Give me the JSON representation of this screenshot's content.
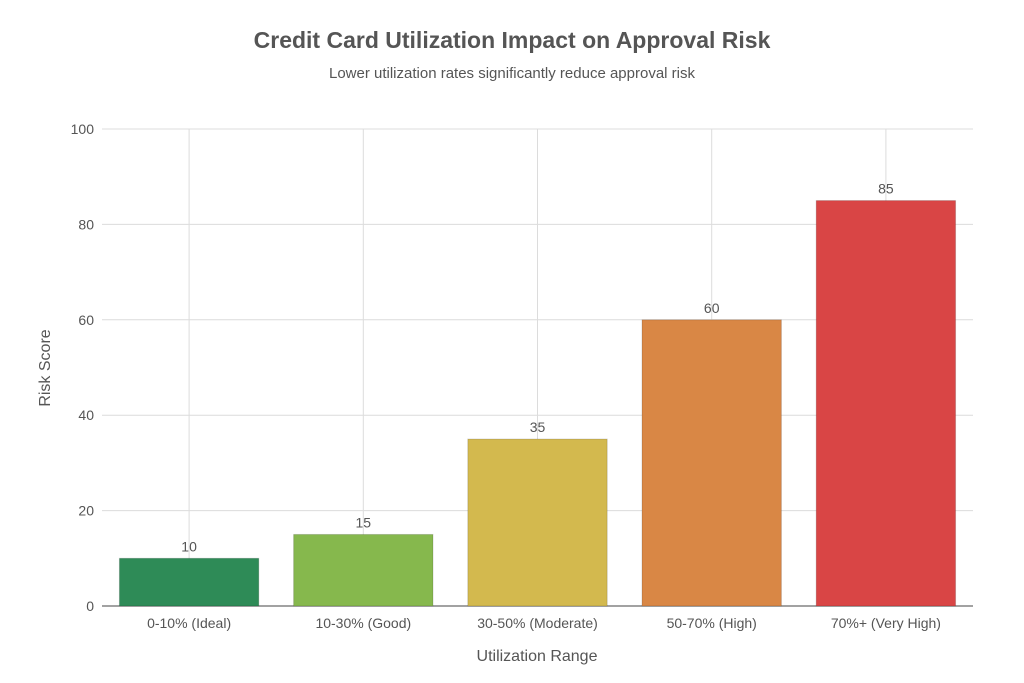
{
  "chart_data": {
    "type": "bar",
    "title": "Credit Card Utilization Impact on Approval Risk",
    "subtitle": "Lower utilization rates significantly reduce approval risk",
    "xlabel": "Utilization Range",
    "ylabel": "Risk Score",
    "categories": [
      "0-10% (Ideal)",
      "10-30% (Good)",
      "30-50% (Moderate)",
      "50-70% (High)",
      "70%+ (Very High)"
    ],
    "values": [
      10,
      15,
      35,
      60,
      85
    ],
    "colors": [
      "#2e8b57",
      "#86b84d",
      "#d3b94e",
      "#d98745",
      "#d94545"
    ],
    "ylim": [
      0,
      100
    ],
    "yticks": [
      0,
      20,
      40,
      60,
      80,
      100
    ],
    "grid": true,
    "legend": "none"
  }
}
